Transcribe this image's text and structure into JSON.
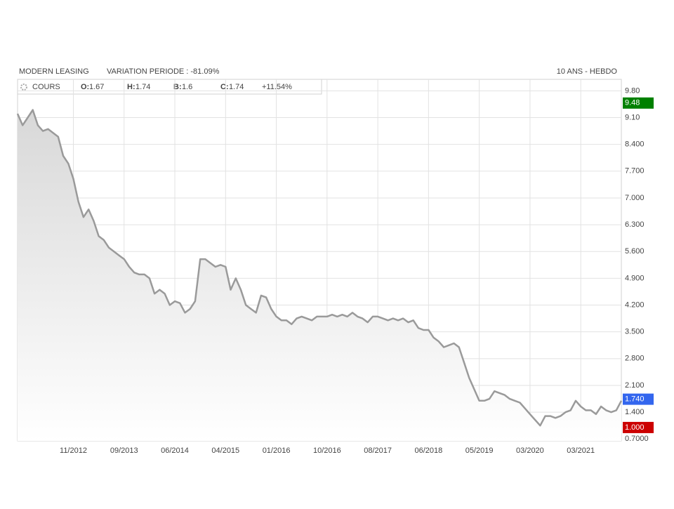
{
  "chart_data": {
    "type": "line",
    "title": "MODERN LEASING",
    "subtitle": "VARIATION PERIODE : -81.09%",
    "period": "10 ANS - HEBDO",
    "legend": {
      "name": "COURS",
      "items": [
        [
          "O:",
          "1.67"
        ],
        [
          "H:",
          "1.74"
        ],
        [
          "B:",
          "1.6"
        ],
        [
          "C:",
          "1.74"
        ]
      ],
      "change": "+11.54%"
    },
    "categories": [
      null,
      null,
      null,
      null,
      null,
      null,
      null,
      null,
      null,
      null,
      null,
      "11/2012",
      null,
      null,
      null,
      null,
      null,
      null,
      null,
      null,
      null,
      "09/2013",
      null,
      null,
      null,
      null,
      null,
      null,
      null,
      null,
      null,
      "06/2014",
      null,
      null,
      null,
      null,
      null,
      null,
      null,
      null,
      null,
      "04/2015",
      null,
      null,
      null,
      null,
      null,
      null,
      null,
      null,
      null,
      "01/2016",
      null,
      null,
      null,
      null,
      null,
      null,
      null,
      null,
      null,
      "10/2016",
      null,
      null,
      null,
      null,
      null,
      null,
      null,
      null,
      null,
      "08/2017",
      null,
      null,
      null,
      null,
      null,
      null,
      null,
      null,
      null,
      "06/2018",
      null,
      null,
      null,
      null,
      null,
      null,
      null,
      null,
      null,
      "05/2019",
      null,
      null,
      null,
      null,
      null,
      null,
      null,
      null,
      null,
      "03/2020",
      null,
      null,
      null,
      null,
      null,
      null,
      null,
      null,
      null,
      "03/2021",
      null,
      null,
      null,
      null,
      null,
      null,
      null,
      null
    ],
    "series": [
      {
        "name": "COURS",
        "color": "#9a9a9a",
        "values": [
          9.2,
          8.9,
          9.1,
          9.3,
          8.9,
          8.75,
          8.8,
          8.7,
          8.6,
          8.1,
          7.9,
          7.5,
          6.9,
          6.5,
          6.7,
          6.4,
          6.0,
          5.9,
          5.7,
          5.6,
          5.5,
          5.4,
          5.2,
          5.05,
          5.0,
          5.0,
          4.9,
          4.5,
          4.6,
          4.5,
          4.2,
          4.3,
          4.25,
          4.0,
          4.1,
          4.3,
          5.4,
          5.4,
          5.3,
          5.2,
          5.25,
          5.2,
          4.6,
          4.9,
          4.6,
          4.2,
          4.1,
          4.0,
          4.45,
          4.4,
          4.1,
          3.9,
          3.8,
          3.8,
          3.7,
          3.85,
          3.9,
          3.85,
          3.8,
          3.9,
          3.9,
          3.9,
          3.95,
          3.9,
          3.95,
          3.9,
          4.0,
          3.9,
          3.85,
          3.75,
          3.9,
          3.9,
          3.85,
          3.8,
          3.85,
          3.8,
          3.85,
          3.75,
          3.8,
          3.6,
          3.55,
          3.55,
          3.35,
          3.25,
          3.1,
          3.15,
          3.2,
          3.1,
          2.7,
          2.3,
          2.0,
          1.7,
          1.7,
          1.75,
          1.95,
          1.9,
          1.85,
          1.75,
          1.7,
          1.65,
          1.5,
          1.35,
          1.2,
          1.05,
          1.3,
          1.3,
          1.25,
          1.3,
          1.4,
          1.45,
          1.7,
          1.55,
          1.45,
          1.45,
          1.35,
          1.55,
          1.45,
          1.4,
          1.45,
          1.7
        ]
      }
    ],
    "ylim": [
      0.65,
      10.1
    ],
    "yticks": [
      {
        "value": 9.8,
        "label": "9.80"
      },
      {
        "value": 9.1,
        "label": "9.10"
      },
      {
        "value": 8.4,
        "label": "8.400"
      },
      {
        "value": 7.7,
        "label": "7.700"
      },
      {
        "value": 7,
        "label": "7.000"
      },
      {
        "value": 6.3,
        "label": "6.300"
      },
      {
        "value": 5.6,
        "label": "5.600"
      },
      {
        "value": 4.9,
        "label": "4.900"
      },
      {
        "value": 4.2,
        "label": "4.200"
      },
      {
        "value": 3.5,
        "label": "3.500"
      },
      {
        "value": 2.8,
        "label": "2.800"
      },
      {
        "value": 2.1,
        "label": "2.100"
      },
      {
        "value": 1.4,
        "label": "1.400"
      },
      {
        "value": 0.7,
        "label": "0.7000"
      }
    ],
    "markers": [
      {
        "value": 9.48,
        "label": "9.48",
        "color": "#008000"
      },
      {
        "value": 1.74,
        "label": "1.740",
        "color": "#3366ee"
      },
      {
        "value": 1.0,
        "label": "1.000",
        "color": "#cc0000"
      }
    ],
    "grid": true
  }
}
